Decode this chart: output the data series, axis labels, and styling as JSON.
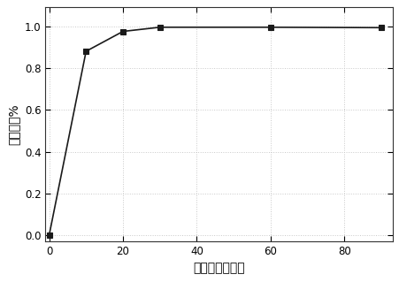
{
  "x": [
    0,
    10,
    20,
    30,
    60,
    90
  ],
  "y": [
    0.0,
    0.88,
    0.975,
    0.995,
    0.995,
    0.993
  ],
  "line_color": "#1a1a1a",
  "marker": "s",
  "marker_color": "#1a1a1a",
  "marker_size": 4,
  "xlabel": "照射时间／分钟",
  "ylabel": "降解率／%",
  "xlim": [
    -1,
    93
  ],
  "ylim": [
    -0.03,
    1.09
  ],
  "xticks": [
    0,
    20,
    40,
    60,
    80
  ],
  "yticks": [
    0.0,
    0.2,
    0.4,
    0.6,
    0.8,
    1.0
  ],
  "grid": true,
  "grid_color": "#c8c8c8",
  "grid_style": ":",
  "background_color": "#ffffff",
  "plot_bg_color": "#ffffff",
  "tick_labelsize": 8.5,
  "xlabel_fontsize": 10,
  "ylabel_fontsize": 10,
  "linewidth": 1.2
}
